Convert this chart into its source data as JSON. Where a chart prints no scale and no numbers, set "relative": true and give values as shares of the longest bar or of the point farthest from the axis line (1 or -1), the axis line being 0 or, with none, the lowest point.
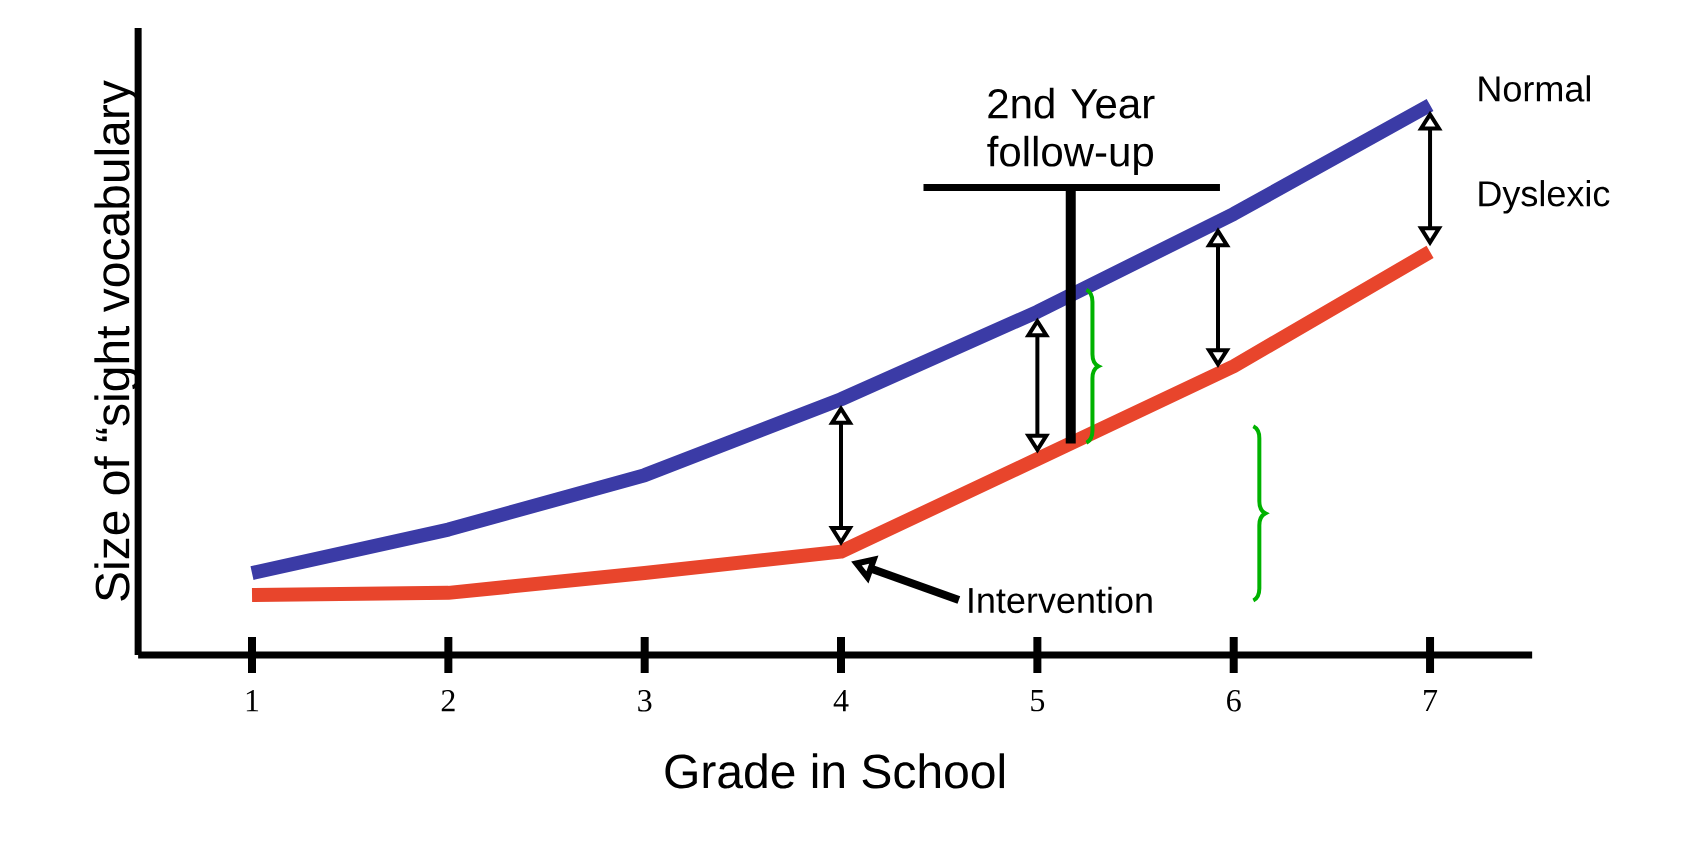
{
  "chart_data": {
    "type": "line",
    "relative": true,
    "xlabel": "Grade in School",
    "ylabel": "Size of “sight vocabulary",
    "categories": [
      "1",
      "2",
      "3",
      "4",
      "5",
      "6",
      "7"
    ],
    "series": [
      {
        "name": "Normal",
        "color": "#3b3ba6",
        "values": [
          0.149,
          0.228,
          0.327,
          0.465,
          0.624,
          0.802,
          1.0
        ]
      },
      {
        "name": "Dyslexic",
        "color": "#e8452c",
        "values": [
          0.109,
          0.113,
          0.149,
          0.188,
          0.356,
          0.525,
          0.733
        ]
      }
    ],
    "annotations": [
      "2nd Year follow-up",
      "Intervention"
    ],
    "legend": false,
    "marker": "none",
    "grid": false,
    "line_style": "solid"
  }
}
